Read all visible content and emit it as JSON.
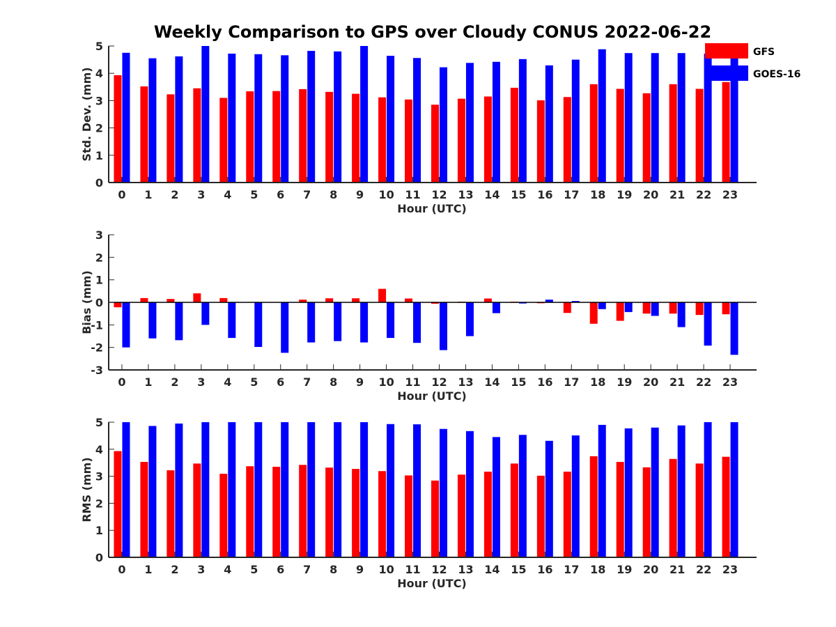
{
  "title": "Weekly Comparison to GPS over Cloudy CONUS 2022-06-22",
  "legend": {
    "placement": "top-right, outside plot",
    "entries": [
      {
        "label": "GFS",
        "color": "#ff0000"
      },
      {
        "label": "GOES-16",
        "color": "#0000ff"
      }
    ]
  },
  "chart_data": [
    {
      "type": "bar",
      "xlabel": "Hour (UTC)",
      "ylabel": "Std. Dev. (mm)",
      "ylim": [
        0,
        5
      ],
      "yticks": [
        "0",
        "1",
        "2",
        "3",
        "4",
        "5"
      ],
      "categories": [
        "0",
        "1",
        "2",
        "3",
        "4",
        "5",
        "6",
        "7",
        "8",
        "9",
        "10",
        "11",
        "12",
        "13",
        "14",
        "15",
        "16",
        "17",
        "18",
        "19",
        "20",
        "21",
        "22",
        "23"
      ],
      "series": [
        {
          "name": "GFS",
          "color": "#ff0000",
          "values": [
            3.93,
            3.52,
            3.23,
            3.45,
            3.1,
            3.34,
            3.35,
            3.42,
            3.32,
            3.25,
            3.12,
            3.04,
            2.85,
            3.07,
            3.15,
            3.47,
            3.01,
            3.13,
            3.6,
            3.43,
            3.27,
            3.6,
            3.43,
            3.68
          ]
        },
        {
          "name": "GOES-16",
          "color": "#0000ff",
          "values": [
            4.75,
            4.55,
            4.62,
            5.0,
            4.72,
            4.7,
            4.66,
            4.82,
            4.8,
            5.0,
            4.64,
            4.56,
            4.22,
            4.38,
            4.42,
            4.52,
            4.29,
            4.5,
            4.88,
            4.74,
            4.74,
            4.74,
            4.72,
            4.6
          ]
        }
      ]
    },
    {
      "type": "bar",
      "xlabel": "Hour (UTC)",
      "ylabel": "Bias (mm)",
      "ylim": [
        -3,
        3
      ],
      "yticks": [
        "-3",
        "-2",
        "-1",
        "0",
        "1",
        "2",
        "3"
      ],
      "zero_line": true,
      "categories": [
        "0",
        "1",
        "2",
        "3",
        "4",
        "5",
        "6",
        "7",
        "8",
        "9",
        "10",
        "11",
        "12",
        "13",
        "14",
        "15",
        "16",
        "17",
        "18",
        "19",
        "20",
        "21",
        "22",
        "23"
      ],
      "series": [
        {
          "name": "GFS",
          "color": "#ff0000",
          "values": [
            -0.22,
            0.19,
            0.15,
            0.4,
            0.19,
            0.0,
            0.0,
            0.12,
            0.18,
            0.18,
            0.6,
            0.17,
            -0.06,
            0.03,
            0.17,
            0.03,
            -0.04,
            -0.47,
            -0.95,
            -0.82,
            -0.5,
            -0.5,
            -0.56,
            -0.53
          ]
        },
        {
          "name": "GOES-16",
          "color": "#0000ff",
          "values": [
            -2.0,
            -1.6,
            -1.68,
            -1.0,
            -1.58,
            -1.98,
            -2.24,
            -1.78,
            -1.72,
            -1.78,
            -1.58,
            -1.8,
            -2.12,
            -1.5,
            -0.48,
            -0.05,
            0.12,
            0.06,
            -0.3,
            -0.43,
            -0.6,
            -1.1,
            -1.92,
            -2.33
          ]
        }
      ]
    },
    {
      "type": "bar",
      "xlabel": "Hour (UTC)",
      "ylabel": "RMS (mm)",
      "ylim": [
        0,
        5
      ],
      "yticks": [
        "0",
        "1",
        "2",
        "3",
        "4",
        "5"
      ],
      "categories": [
        "0",
        "1",
        "2",
        "3",
        "4",
        "5",
        "6",
        "7",
        "8",
        "9",
        "10",
        "11",
        "12",
        "13",
        "14",
        "15",
        "16",
        "17",
        "18",
        "19",
        "20",
        "21",
        "22",
        "23"
      ],
      "series": [
        {
          "name": "GFS",
          "color": "#ff0000",
          "values": [
            3.93,
            3.53,
            3.22,
            3.47,
            3.09,
            3.37,
            3.35,
            3.42,
            3.32,
            3.27,
            3.19,
            3.03,
            2.84,
            3.06,
            3.17,
            3.47,
            3.02,
            3.17,
            3.74,
            3.53,
            3.33,
            3.64,
            3.47,
            3.72
          ]
        },
        {
          "name": "GOES-16",
          "color": "#0000ff",
          "values": [
            5.0,
            4.86,
            4.95,
            5.0,
            5.0,
            5.0,
            5.0,
            5.0,
            5.0,
            5.0,
            4.93,
            4.92,
            4.75,
            4.67,
            4.45,
            4.53,
            4.31,
            4.51,
            4.9,
            4.77,
            4.8,
            4.88,
            5.0,
            5.0
          ]
        }
      ]
    }
  ]
}
